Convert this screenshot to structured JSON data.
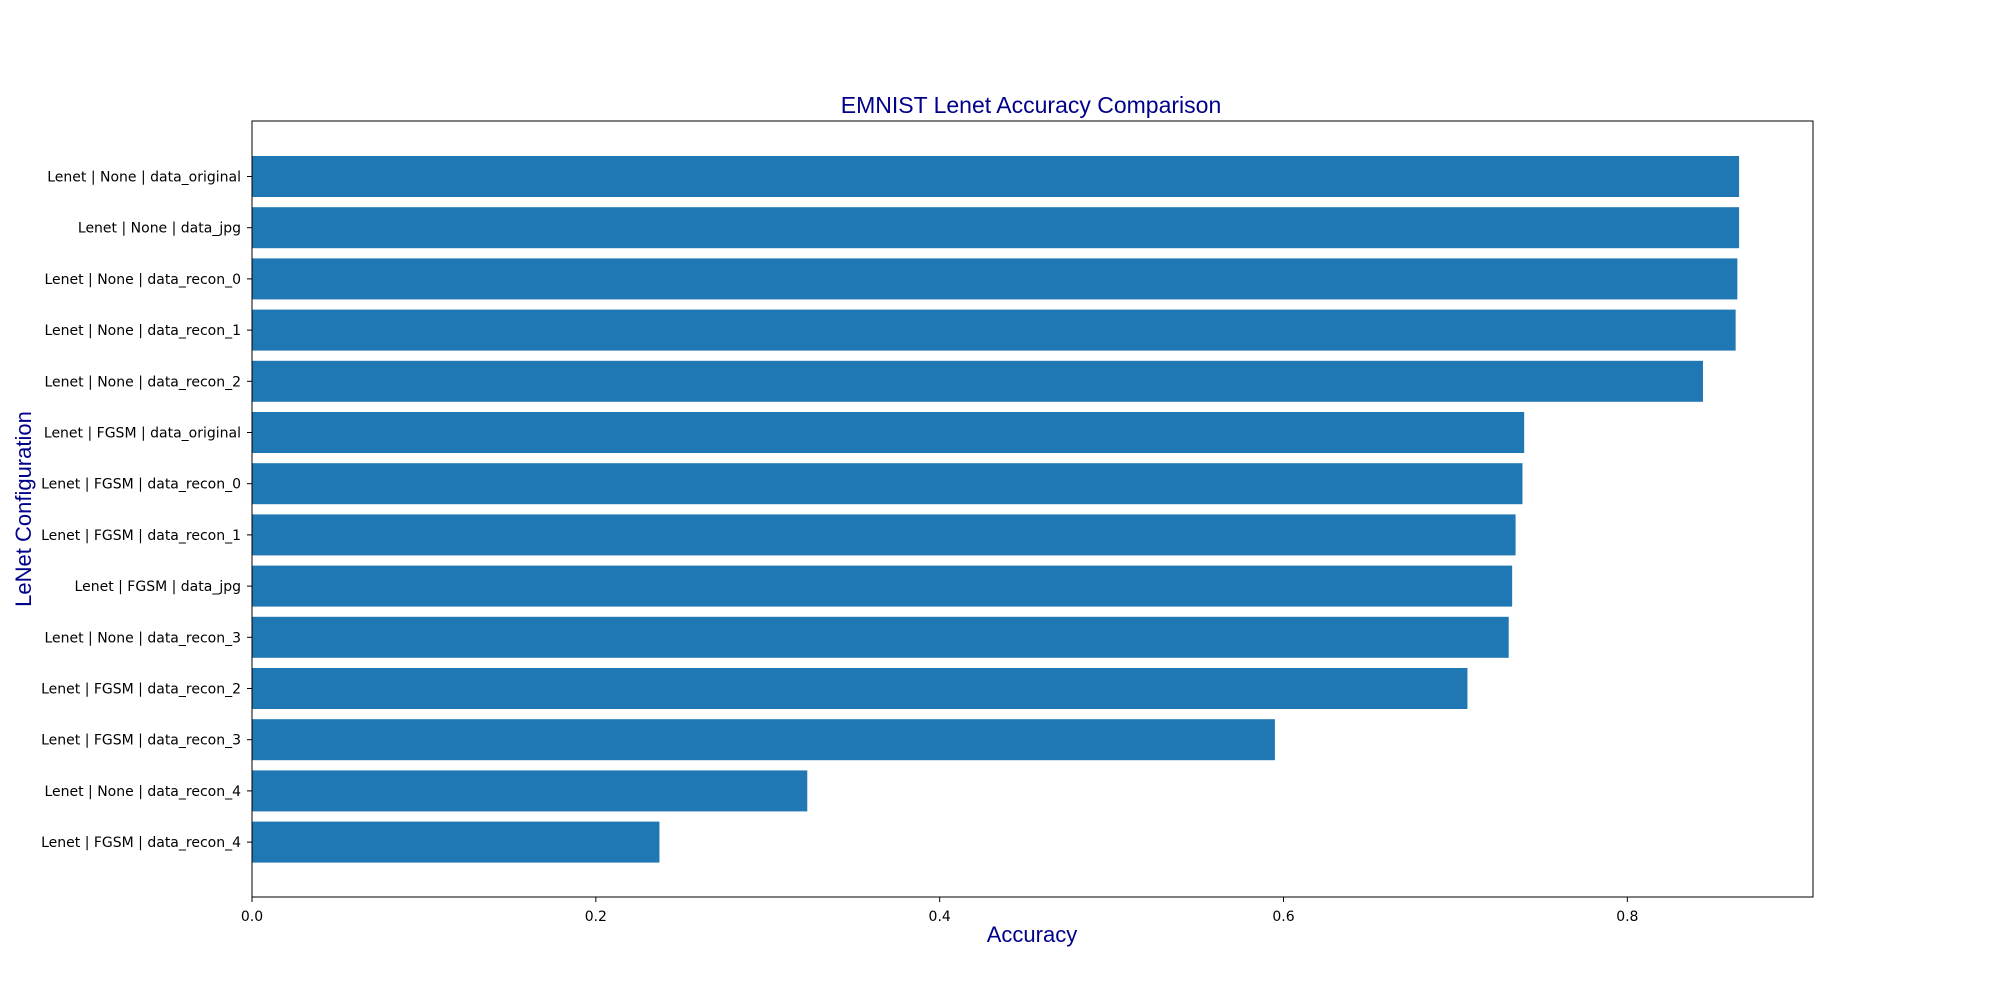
{
  "chart_data": {
    "type": "bar",
    "orientation": "horizontal",
    "title": "EMNIST Lenet Accuracy Comparison",
    "xlabel": "Accuracy",
    "ylabel": "LeNet Configuration",
    "xlim": [
      0,
      0.908
    ],
    "xticks": [
      "0.0",
      "0.2",
      "0.4",
      "0.6",
      "0.8"
    ],
    "xtick_values": [
      0,
      0.2,
      0.4,
      0.6,
      0.8
    ],
    "categories": [
      "Lenet | None | data_original",
      "Lenet | None | data_jpg",
      "Lenet | None | data_recon_0",
      "Lenet | None | data_recon_1",
      "Lenet | None | data_recon_2",
      "Lenet | FGSM | data_original",
      "Lenet | FGSM | data_recon_0",
      "Lenet | FGSM | data_recon_1",
      "Lenet | FGSM | data_jpg",
      "Lenet | None | data_recon_3",
      "Lenet | FGSM | data_recon_2",
      "Lenet | FGSM | data_recon_3",
      "Lenet | None | data_recon_4",
      "Lenet | FGSM | data_recon_4"
    ],
    "values": [
      0.865,
      0.865,
      0.864,
      0.863,
      0.844,
      0.74,
      0.739,
      0.735,
      0.733,
      0.731,
      0.707,
      0.595,
      0.323,
      0.237
    ],
    "grid": false,
    "legend": "none",
    "colors": {
      "bar": "#1f77b4",
      "title": "#00008b",
      "axis_title": "#00008b",
      "axes": "#000000"
    }
  }
}
